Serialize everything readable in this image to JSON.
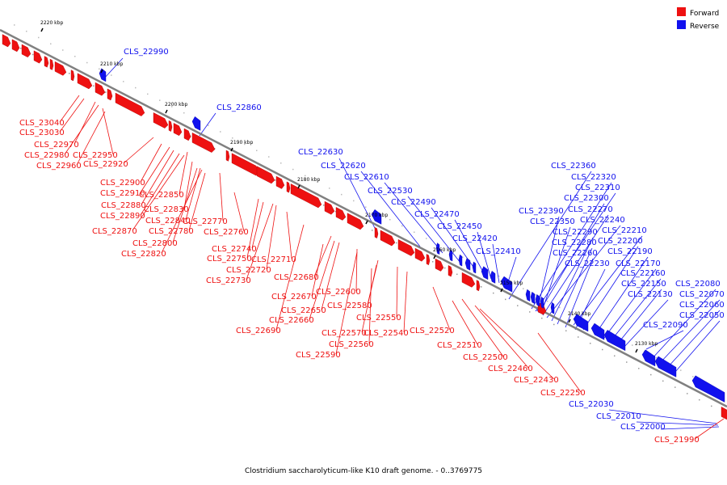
{
  "caption": "Clostridium saccharolyticum-like K10 draft genome. - 0..3769775",
  "legend": [
    {
      "label": "Forward",
      "color": "#ee1111"
    },
    {
      "label": "Reverse",
      "color": "#1111ee"
    }
  ],
  "colors": {
    "forward": "#ee1111",
    "reverse": "#1111ee",
    "backbone": "#777777"
  },
  "chart_data": {
    "type": "genome-map",
    "axis_unit": "kbp",
    "ticks": [
      "2220 kbp",
      "2210 kbp",
      "2200 kbp",
      "2190 kbp",
      "2180 kbp",
      "2170 kbp",
      "2160 kbp",
      "2150 kbp",
      "2140 kbp",
      "2130 kbp"
    ],
    "reverse_genes": [
      "CLS_22990",
      "CLS_22860",
      "CLS_22630",
      "CLS_22620",
      "CLS_22610",
      "CLS_22530",
      "CLS_22490",
      "CLS_22470",
      "CLS_22450",
      "CLS_22420",
      "CLS_22410",
      "CLS_22360",
      "CLS_22320",
      "CLS_22310",
      "CLS_22300",
      "CLS_22270",
      "CLS_22240",
      "CLS_22390",
      "CLS_22350",
      "CLS_22290",
      "CLS_22210",
      "CLS_22280",
      "CLS_22200",
      "CLS_22260",
      "CLS_22190",
      "CLS_22230",
      "CLS_22170",
      "CLS_22160",
      "CLS_22150",
      "CLS_22130",
      "CLS_22080",
      "CLS_22070",
      "CLS_22060",
      "CLS_22050",
      "CLS_22090",
      "CLS_22030",
      "CLS_22010",
      "CLS_22000"
    ],
    "forward_genes": [
      "CLS_23040",
      "CLS_23030",
      "CLS_22970",
      "CLS_22980",
      "CLS_22950",
      "CLS_22960",
      "CLS_22920",
      "CLS_22900",
      "CLS_22910",
      "CLS_22850",
      "CLS_22880",
      "CLS_22830",
      "CLS_22890",
      "CLS_22840",
      "CLS_22770",
      "CLS_22870",
      "CLS_22780",
      "CLS_22760",
      "CLS_22800",
      "CLS_22820",
      "CLS_22740",
      "CLS_22750",
      "CLS_22710",
      "CLS_22720",
      "CLS_22730",
      "CLS_22680",
      "CLS_22600",
      "CLS_22670",
      "CLS_22650",
      "CLS_22580",
      "CLS_22660",
      "CLS_22550",
      "CLS_22690",
      "CLS_22570",
      "CLS_22540",
      "CLS_22520",
      "CLS_22560",
      "CLS_22510",
      "CLS_22590",
      "CLS_22500",
      "CLS_22460",
      "CLS_22430",
      "CLS_22250",
      "CLS_21990"
    ]
  }
}
